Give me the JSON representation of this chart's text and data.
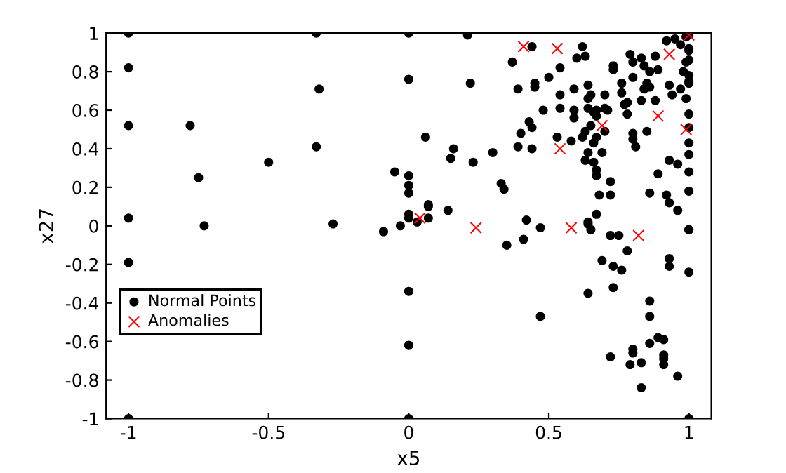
{
  "chart_data": {
    "type": "scatter",
    "xlabel": "x5",
    "ylabel": "x27",
    "xlim": [
      -1.08,
      1.08
    ],
    "ylim": [
      -1,
      1
    ],
    "xticks": [
      -1,
      -0.5,
      0,
      0.5,
      1
    ],
    "yticks": [
      -1,
      -0.8,
      -0.6,
      -0.4,
      -0.2,
      0,
      0.2,
      0.4,
      0.6,
      0.8,
      1
    ],
    "grid": false,
    "legend": "bottom left",
    "series": [
      {
        "name": "Normal Points",
        "color": "#000000",
        "marker": "circle",
        "x": [
          -1,
          -1,
          -1,
          -1,
          -1,
          -1,
          -0.78,
          -0.75,
          -0.73,
          -0.5,
          -0.33,
          -0.32,
          -0.33,
          -0.27,
          -0.09,
          -0.05,
          0,
          0,
          0,
          0,
          0,
          0,
          0,
          -0.03,
          0.06,
          0.07,
          0.07,
          0.03,
          0,
          0,
          0,
          0.21,
          0.37,
          0.44,
          0.22,
          0.39,
          0.45,
          0.45,
          0.5,
          0.54,
          0.62,
          0.63,
          0.6,
          0.59,
          0.64,
          0.54,
          0.48,
          0.54,
          0.59,
          0.59,
          0.64,
          0.65,
          0.64,
          0.66,
          0.67,
          0.67,
          0.7,
          0.7,
          0.71,
          0.73,
          0.73,
          0.76,
          0.76,
          0.77,
          0.78,
          0.8,
          0.78,
          0.79,
          0.8,
          0.83,
          0.84,
          0.86,
          0.88,
          0.89,
          0.85,
          0.86,
          0.84,
          0.83,
          0.88,
          0.93,
          0.94,
          0.97,
          0.92,
          0.95,
          0.97,
          0.99,
          1.0,
          0.99,
          0.98,
          1.0,
          1.0,
          0.99,
          1.0,
          1.0,
          1.0,
          1.0,
          1.0,
          1.0,
          1.0,
          1.0,
          1.0,
          1.0,
          0.43,
          0.44,
          0.4,
          0.39,
          0.44,
          0.53,
          0.58,
          0.62,
          0.63,
          0.65,
          0.67,
          0.66,
          0.7,
          0.69,
          0.64,
          0.63,
          0.66,
          0.67,
          0.67,
          0.8,
          0.8,
          0.81,
          0.85,
          0.93,
          0.96,
          0.89,
          0.16,
          0.15,
          0.23,
          0.3,
          0.33,
          0.34,
          0.07,
          0.14,
          0.42,
          0.72,
          0.72,
          0.68,
          0.86,
          0.92,
          0.93,
          0.96,
          1.0,
          0.67,
          0.64,
          0.35,
          0.41,
          0.47,
          0.64,
          0.65,
          0.72,
          0.75,
          0.78,
          0.69,
          0.73,
          0.76,
          0.64,
          0.73,
          0.93,
          0.93,
          1.0,
          1.0,
          0.47,
          0.86,
          0.86,
          0.89,
          0.91,
          0.86,
          0.8,
          0.8,
          0.83,
          0.79,
          0.72,
          0.91,
          0.91,
          0.91,
          0.96,
          0.83,
          1.0
        ],
        "values": [
          1,
          0.82,
          0.52,
          0.04,
          -0.19,
          -1,
          0.52,
          0.25,
          0.0,
          0.33,
          1.0,
          0.71,
          0.41,
          0.01,
          -0.03,
          0.28,
          1,
          0.76,
          0.26,
          0.21,
          0.17,
          0.06,
          0.04,
          0.0,
          0.46,
          0.11,
          0.04,
          0.02,
          -0.34,
          -0.62,
          -1,
          0.99,
          0.85,
          0.93,
          0.74,
          0.71,
          0.74,
          0.72,
          0.77,
          0.82,
          0.93,
          0.88,
          0.87,
          0.71,
          0.73,
          0.68,
          0.6,
          0.61,
          0.6,
          0.56,
          0.66,
          0.68,
          0.61,
          0.59,
          0.6,
          0.57,
          0.68,
          0.61,
          0.6,
          0.83,
          0.81,
          0.74,
          0.69,
          0.63,
          0.64,
          0.77,
          0.58,
          0.89,
          0.85,
          0.87,
          0.83,
          0.8,
          0.88,
          0.81,
          0.74,
          0.72,
          0.71,
          0.65,
          0.65,
          0.73,
          0.68,
          0.71,
          0.96,
          0.97,
          0.94,
          0.98,
          0.92,
          0.85,
          0.8,
          0.78,
          0.74,
          0.66,
          0.99,
          0.91,
          0.86,
          0.58,
          0.51,
          0.43,
          0.37,
          0.28,
          0.18,
          0.75,
          0.54,
          0.51,
          0.48,
          0.41,
          0.4,
          0.46,
          0.44,
          0.46,
          0.49,
          0.52,
          0.46,
          0.43,
          0.49,
          0.38,
          0.38,
          0.34,
          0.33,
          0.29,
          0.26,
          0.48,
          0.45,
          0.41,
          0.49,
          0.34,
          0.32,
          0.27,
          0.4,
          0.35,
          0.33,
          0.38,
          0.22,
          0.19,
          0.1,
          0.08,
          0.03,
          0.23,
          0.16,
          0.16,
          0.17,
          0.16,
          0.12,
          0.08,
          -0.02,
          0.06,
          0.02,
          -0.1,
          -0.07,
          -0.01,
          0.01,
          -0.02,
          -0.05,
          -0.05,
          -0.13,
          -0.18,
          -0.21,
          -0.23,
          -0.35,
          -0.32,
          -0.17,
          -0.21,
          -0.24,
          -0.02,
          -0.47,
          -0.39,
          -0.47,
          -0.58,
          -0.59,
          -0.61,
          -0.64,
          -0.66,
          -0.71,
          -0.72,
          -0.68,
          -0.67,
          -0.69,
          -0.72,
          -0.78,
          -0.84,
          -1.0
        ]
      },
      {
        "name": "Anomalies",
        "color": "#ff0000",
        "marker": "cross",
        "x": [
          0.04,
          0.41,
          0.53,
          1.0,
          0.93,
          0.89,
          0.69,
          0.54,
          0.99,
          0.24,
          0.58,
          0.82
        ],
        "values": [
          0.04,
          0.93,
          0.92,
          0.99,
          0.89,
          0.57,
          0.52,
          0.4,
          0.5,
          -0.01,
          -0.01,
          -0.05
        ]
      }
    ]
  }
}
